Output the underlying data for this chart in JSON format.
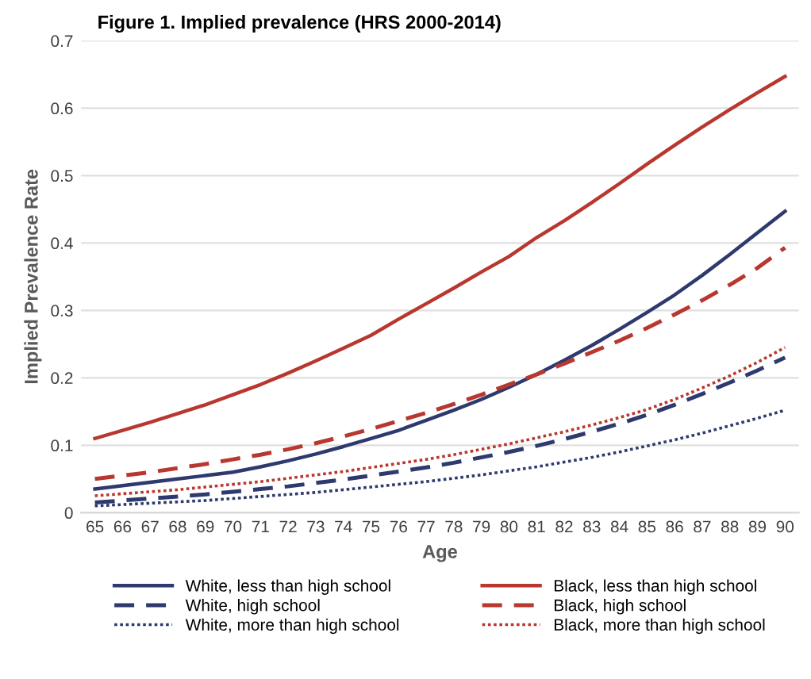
{
  "chart_data": {
    "type": "line",
    "title": "Figure 1. Implied prevalence (HRS 2000-2014)",
    "xlabel": "Age",
    "ylabel": "Implied Prevalence Rate",
    "categories": [
      "65",
      "66",
      "67",
      "68",
      "69",
      "70",
      "71",
      "72",
      "73",
      "74",
      "75",
      "76",
      "77",
      "78",
      "79",
      "80",
      "81",
      "82",
      "83",
      "84",
      "85",
      "86",
      "87",
      "88",
      "89",
      "90"
    ],
    "ylim": [
      0,
      0.7
    ],
    "yticks": [
      {
        "value": 0,
        "label": "0"
      },
      0.1,
      0.2,
      0.3,
      0.4,
      0.5,
      0.6,
      0.7
    ],
    "grid": "y",
    "legend": "bottom",
    "series": [
      {
        "name": "White, less than high school",
        "color": "#2e3a6e",
        "line_style": "solid",
        "values": [
          0.035,
          0.04,
          0.045,
          0.05,
          0.055,
          0.06,
          0.068,
          0.077,
          0.087,
          0.098,
          0.11,
          0.122,
          0.137,
          0.152,
          0.168,
          0.186,
          0.205,
          0.226,
          0.248,
          0.272,
          0.297,
          0.323,
          0.352,
          0.383,
          0.415,
          0.447
        ]
      },
      {
        "name": "White, high school",
        "color": "#2e3a6e",
        "line_style": "dashed",
        "values": [
          0.015,
          0.018,
          0.021,
          0.024,
          0.027,
          0.031,
          0.035,
          0.039,
          0.044,
          0.049,
          0.055,
          0.061,
          0.067,
          0.074,
          0.082,
          0.09,
          0.099,
          0.109,
          0.12,
          0.132,
          0.145,
          0.16,
          0.176,
          0.193,
          0.211,
          0.23
        ]
      },
      {
        "name": "White, more than high school",
        "color": "#2e3a6e",
        "line_style": "dotted",
        "values": [
          0.01,
          0.012,
          0.014,
          0.016,
          0.018,
          0.021,
          0.024,
          0.027,
          0.03,
          0.034,
          0.038,
          0.042,
          0.046,
          0.051,
          0.056,
          0.062,
          0.068,
          0.075,
          0.082,
          0.09,
          0.099,
          0.108,
          0.118,
          0.129,
          0.14,
          0.152
        ]
      },
      {
        "name": "Black, less than high school",
        "color": "#b8372f",
        "line_style": "solid",
        "values": [
          0.11,
          0.122,
          0.134,
          0.147,
          0.16,
          0.175,
          0.19,
          0.207,
          0.225,
          0.244,
          0.263,
          0.287,
          0.31,
          0.333,
          0.357,
          0.38,
          0.408,
          0.433,
          0.46,
          0.488,
          0.517,
          0.545,
          0.572,
          0.598,
          0.623,
          0.647
        ]
      },
      {
        "name": "Black, high school",
        "color": "#b8372f",
        "line_style": "dashed",
        "values": [
          0.05,
          0.055,
          0.06,
          0.066,
          0.072,
          0.079,
          0.086,
          0.094,
          0.103,
          0.113,
          0.124,
          0.136,
          0.148,
          0.161,
          0.175,
          0.19,
          0.205,
          0.221,
          0.238,
          0.255,
          0.274,
          0.294,
          0.315,
          0.338,
          0.363,
          0.393
        ]
      },
      {
        "name": "Black, more than high school",
        "color": "#b8372f",
        "line_style": "dotted",
        "values": [
          0.025,
          0.028,
          0.031,
          0.034,
          0.038,
          0.042,
          0.046,
          0.051,
          0.056,
          0.061,
          0.067,
          0.073,
          0.079,
          0.086,
          0.094,
          0.102,
          0.111,
          0.12,
          0.13,
          0.141,
          0.153,
          0.168,
          0.185,
          0.203,
          0.223,
          0.245
        ]
      }
    ]
  }
}
